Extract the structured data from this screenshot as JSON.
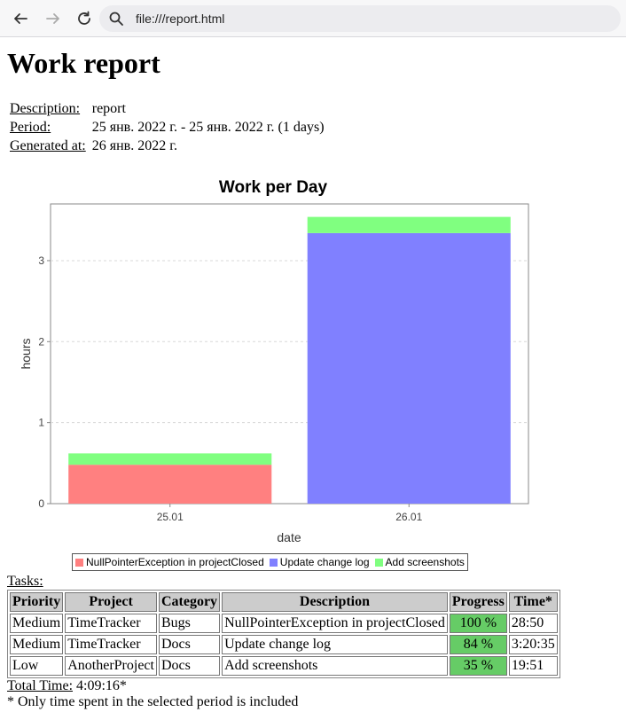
{
  "browser": {
    "url": "file:///report.html",
    "back_icon": "arrow-left-icon",
    "forward_icon": "arrow-right-icon",
    "reload_icon": "reload-icon",
    "search_icon": "search-icon"
  },
  "report": {
    "title": "Work report",
    "meta": [
      {
        "label": "Description:",
        "value": "report"
      },
      {
        "label": "Period:",
        "value": "25 янв. 2022 г. - 25 янв. 2022 г. (1 days)"
      },
      {
        "label": "Generated at:",
        "value": "26 янв. 2022 г."
      }
    ]
  },
  "chart_data": {
    "type": "bar",
    "stacked": true,
    "title": "Work per Day",
    "xlabel": "date",
    "ylabel": "hours",
    "categories": [
      "25.01",
      "26.01"
    ],
    "ylim": [
      0,
      3.7
    ],
    "yticks": [
      0,
      1,
      2,
      3
    ],
    "grid": true,
    "legend_position": "bottom",
    "series": [
      {
        "name": "NullPointerException in projectClosed",
        "color": "#ff8080",
        "values": [
          0.48,
          0
        ]
      },
      {
        "name": "Update change log",
        "color": "#8080ff",
        "values": [
          0,
          3.34
        ]
      },
      {
        "name": "Add screenshots",
        "color": "#80ff80",
        "values": [
          0.14,
          0.2
        ]
      }
    ]
  },
  "tasks": {
    "label": "Tasks:",
    "columns": [
      "Priority",
      "Project",
      "Category",
      "Description",
      "Progress",
      "Time*"
    ],
    "rows": [
      [
        "Medium",
        "TimeTracker",
        "Bugs",
        "NullPointerException in projectClosed",
        "100 %",
        "28:50"
      ],
      [
        "Medium",
        "TimeTracker",
        "Docs",
        "Update change log",
        "84 %",
        "3:20:35"
      ],
      [
        "Low",
        "AnotherProject",
        "Docs",
        "Add screenshots",
        "35 %",
        "19:51"
      ]
    ],
    "progress_color": "#66cc66"
  },
  "total": {
    "label": "Total Time:",
    "value": "4:09:16*"
  },
  "footnote": "* Only time spent in the selected period is included"
}
